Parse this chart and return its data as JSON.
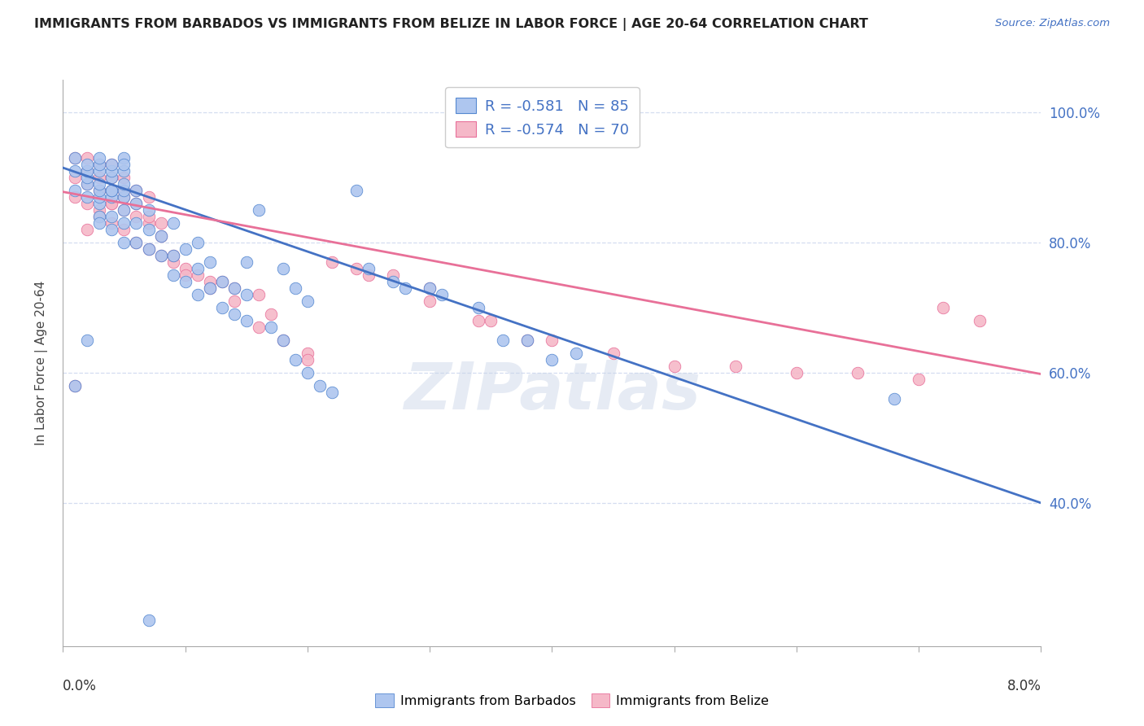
{
  "title": "IMMIGRANTS FROM BARBADOS VS IMMIGRANTS FROM BELIZE IN LABOR FORCE | AGE 20-64 CORRELATION CHART",
  "source": "Source: ZipAtlas.com",
  "ylabel": "In Labor Force | Age 20-64",
  "xlim": [
    0.0,
    0.08
  ],
  "ylim": [
    0.18,
    1.05
  ],
  "yticks": [
    0.4,
    0.6,
    0.8,
    1.0
  ],
  "ytick_labels": [
    "40.0%",
    "60.0%",
    "80.0%",
    "100.0%"
  ],
  "xticks": [
    0.0,
    0.01,
    0.02,
    0.03,
    0.04,
    0.05,
    0.06,
    0.07,
    0.08
  ],
  "grid_color": "#d4ddf0",
  "bg_color": "#ffffff",
  "barbados_color": "#aec6ef",
  "belize_color": "#f5b8c8",
  "barbados_edge_color": "#5588d0",
  "belize_edge_color": "#e8709a",
  "barbados_R": -0.581,
  "barbados_N": 85,
  "belize_R": -0.574,
  "belize_N": 70,
  "barbados_line_color": "#4472c4",
  "belize_line_color": "#e87098",
  "legend_label_barbados": "Immigrants from Barbados",
  "legend_label_belize": "Immigrants from Belize",
  "watermark": "ZIPatlas",
  "accent_color": "#4472c4",
  "barb_line_x": [
    0.0,
    0.08
  ],
  "barb_line_y": [
    0.915,
    0.4
  ],
  "belize_line_x": [
    0.0,
    0.08
  ],
  "belize_line_y": [
    0.878,
    0.598
  ],
  "barbados_scatter_x": [
    0.001,
    0.001,
    0.001,
    0.002,
    0.002,
    0.002,
    0.002,
    0.002,
    0.003,
    0.003,
    0.003,
    0.003,
    0.003,
    0.003,
    0.003,
    0.003,
    0.004,
    0.004,
    0.004,
    0.004,
    0.004,
    0.004,
    0.004,
    0.005,
    0.005,
    0.005,
    0.005,
    0.005,
    0.005,
    0.005,
    0.005,
    0.006,
    0.006,
    0.006,
    0.006,
    0.007,
    0.007,
    0.007,
    0.008,
    0.008,
    0.009,
    0.009,
    0.009,
    0.01,
    0.01,
    0.011,
    0.011,
    0.011,
    0.012,
    0.012,
    0.013,
    0.013,
    0.014,
    0.014,
    0.015,
    0.015,
    0.015,
    0.016,
    0.017,
    0.018,
    0.018,
    0.019,
    0.019,
    0.02,
    0.02,
    0.021,
    0.022,
    0.024,
    0.025,
    0.027,
    0.028,
    0.03,
    0.031,
    0.034,
    0.036,
    0.038,
    0.04,
    0.042,
    0.068,
    0.001,
    0.002,
    0.003,
    0.004,
    0.005,
    0.007
  ],
  "barbados_scatter_y": [
    0.88,
    0.91,
    0.93,
    0.87,
    0.89,
    0.9,
    0.91,
    0.92,
    0.84,
    0.86,
    0.87,
    0.88,
    0.89,
    0.91,
    0.92,
    0.93,
    0.82,
    0.84,
    0.87,
    0.88,
    0.9,
    0.91,
    0.92,
    0.8,
    0.83,
    0.85,
    0.87,
    0.88,
    0.89,
    0.91,
    0.93,
    0.8,
    0.83,
    0.86,
    0.88,
    0.79,
    0.82,
    0.85,
    0.78,
    0.81,
    0.75,
    0.78,
    0.83,
    0.74,
    0.79,
    0.72,
    0.76,
    0.8,
    0.73,
    0.77,
    0.7,
    0.74,
    0.69,
    0.73,
    0.68,
    0.72,
    0.77,
    0.85,
    0.67,
    0.65,
    0.76,
    0.62,
    0.73,
    0.6,
    0.71,
    0.58,
    0.57,
    0.88,
    0.76,
    0.74,
    0.73,
    0.73,
    0.72,
    0.7,
    0.65,
    0.65,
    0.62,
    0.63,
    0.56,
    0.58,
    0.65,
    0.83,
    0.88,
    0.92,
    0.22
  ],
  "belize_scatter_x": [
    0.001,
    0.001,
    0.001,
    0.002,
    0.002,
    0.002,
    0.002,
    0.003,
    0.003,
    0.003,
    0.003,
    0.004,
    0.004,
    0.004,
    0.004,
    0.004,
    0.005,
    0.005,
    0.005,
    0.005,
    0.006,
    0.006,
    0.006,
    0.007,
    0.007,
    0.007,
    0.008,
    0.008,
    0.009,
    0.01,
    0.011,
    0.012,
    0.013,
    0.014,
    0.016,
    0.017,
    0.018,
    0.02,
    0.022,
    0.024,
    0.027,
    0.03,
    0.034,
    0.038,
    0.001,
    0.002,
    0.003,
    0.004,
    0.005,
    0.006,
    0.007,
    0.008,
    0.009,
    0.01,
    0.012,
    0.014,
    0.016,
    0.02,
    0.025,
    0.03,
    0.035,
    0.04,
    0.045,
    0.05,
    0.055,
    0.06,
    0.065,
    0.07,
    0.072,
    0.075
  ],
  "belize_scatter_y": [
    0.87,
    0.9,
    0.93,
    0.86,
    0.89,
    0.91,
    0.93,
    0.85,
    0.88,
    0.9,
    0.92,
    0.83,
    0.86,
    0.88,
    0.9,
    0.92,
    0.82,
    0.85,
    0.87,
    0.9,
    0.8,
    0.84,
    0.88,
    0.79,
    0.83,
    0.87,
    0.78,
    0.83,
    0.77,
    0.76,
    0.75,
    0.74,
    0.74,
    0.73,
    0.72,
    0.69,
    0.65,
    0.63,
    0.77,
    0.76,
    0.75,
    0.73,
    0.68,
    0.65,
    0.58,
    0.82,
    0.84,
    0.86,
    0.88,
    0.86,
    0.84,
    0.81,
    0.78,
    0.75,
    0.73,
    0.71,
    0.67,
    0.62,
    0.75,
    0.71,
    0.68,
    0.65,
    0.63,
    0.61,
    0.61,
    0.6,
    0.6,
    0.59,
    0.7,
    0.68
  ]
}
